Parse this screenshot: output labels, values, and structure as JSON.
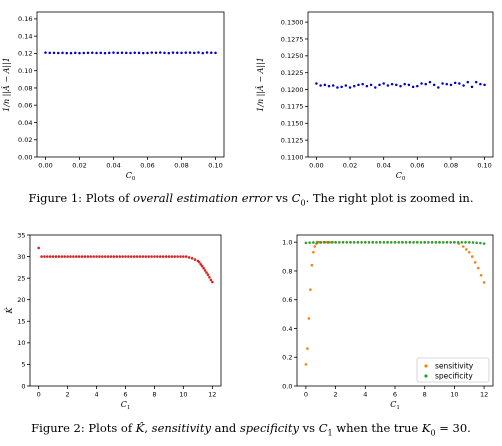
{
  "captions": {
    "fig1": {
      "prefix": "Figure 1: Plots of ",
      "emph": "overall estimation error",
      "mid": " vs ",
      "var": "C",
      "sub": "0",
      "suffix": ". The right plot is zoomed in."
    },
    "fig2": {
      "prefix": "Figure 2: Plots of ",
      "khat": "K̂",
      "comma": ", ",
      "emph1": "sensitivity",
      "and": " and ",
      "emph2": "specificity",
      "vs": " vs ",
      "var": "C",
      "sub": "1",
      "when": " when the true ",
      "kvar": "K",
      "ksub": "0",
      "eq": " = 30."
    }
  },
  "chart_data": [
    {
      "id": "err_full",
      "type": "scatter",
      "xlabel": "C0",
      "ylabel": "1/n ||Â − A||1",
      "xlim": [
        -0.005,
        0.105
      ],
      "ylim": [
        0.0,
        0.168
      ],
      "xticks": [
        "0.00",
        "0.02",
        "0.04",
        "0.06",
        "0.08",
        "0.10"
      ],
      "yticks": [
        "0.00",
        "0.02",
        "0.04",
        "0.06",
        "0.08",
        "0.10",
        "0.12",
        "0.14",
        "0.16"
      ],
      "series": [
        {
          "color": "#0000cc",
          "x": [
            0.0,
            0.0025,
            0.005,
            0.0075,
            0.01,
            0.0125,
            0.015,
            0.0175,
            0.02,
            0.0225,
            0.025,
            0.0275,
            0.03,
            0.0325,
            0.035,
            0.0375,
            0.04,
            0.0425,
            0.045,
            0.0475,
            0.05,
            0.0525,
            0.055,
            0.0575,
            0.06,
            0.0625,
            0.065,
            0.0675,
            0.07,
            0.0725,
            0.075,
            0.0775,
            0.08,
            0.0825,
            0.085,
            0.0875,
            0.09,
            0.0925,
            0.095,
            0.0975,
            0.1
          ],
          "y": [
            0.1209,
            0.1206,
            0.1207,
            0.1205,
            0.1206,
            0.1203,
            0.1204,
            0.1206,
            0.1203,
            0.1205,
            0.1207,
            0.1208,
            0.1205,
            0.1207,
            0.1203,
            0.1207,
            0.1209,
            0.1206,
            0.1208,
            0.1207,
            0.1205,
            0.1208,
            0.1207,
            0.1204,
            0.1205,
            0.1209,
            0.1208,
            0.1211,
            0.1207,
            0.1203,
            0.1209,
            0.1208,
            0.1207,
            0.121,
            0.1209,
            0.1206,
            0.1211,
            0.1204,
            0.1211,
            0.1208,
            0.1207
          ]
        }
      ]
    },
    {
      "id": "err_zoom",
      "type": "scatter",
      "xlabel": "C0",
      "ylabel": "1/n ||Â − A||1",
      "xlim": [
        -0.005,
        0.105
      ],
      "ylim": [
        0.11,
        0.1315
      ],
      "xticks": [
        "0.00",
        "0.02",
        "0.04",
        "0.06",
        "0.08",
        "0.10"
      ],
      "yticks": [
        "0.1100",
        "0.1125",
        "0.1150",
        "0.1175",
        "0.1200",
        "0.1225",
        "0.1250",
        "0.1275",
        "0.1300"
      ],
      "series": [
        {
          "color": "#0000cc",
          "x": [
            0.0,
            0.0025,
            0.005,
            0.0075,
            0.01,
            0.0125,
            0.015,
            0.0175,
            0.02,
            0.0225,
            0.025,
            0.0275,
            0.03,
            0.0325,
            0.035,
            0.0375,
            0.04,
            0.0425,
            0.045,
            0.0475,
            0.05,
            0.0525,
            0.055,
            0.0575,
            0.06,
            0.0625,
            0.065,
            0.0675,
            0.07,
            0.0725,
            0.075,
            0.0775,
            0.08,
            0.0825,
            0.085,
            0.0875,
            0.09,
            0.0925,
            0.095,
            0.0975,
            0.1
          ],
          "y": [
            0.1209,
            0.1206,
            0.1207,
            0.1205,
            0.1206,
            0.1203,
            0.1204,
            0.1206,
            0.1203,
            0.1205,
            0.1207,
            0.1208,
            0.1205,
            0.1207,
            0.1203,
            0.1207,
            0.1209,
            0.1206,
            0.1208,
            0.1207,
            0.1205,
            0.1208,
            0.1207,
            0.1204,
            0.1205,
            0.1209,
            0.1208,
            0.1211,
            0.1207,
            0.1203,
            0.1209,
            0.1208,
            0.1207,
            0.121,
            0.1209,
            0.1206,
            0.1211,
            0.1204,
            0.1211,
            0.1208,
            0.1207
          ]
        }
      ]
    },
    {
      "id": "khat",
      "type": "scatter",
      "xlabel": "C1",
      "ylabel": "K̂",
      "xlim": [
        -0.6,
        12.6
      ],
      "ylim": [
        0,
        35
      ],
      "xticks": [
        "0",
        "2",
        "4",
        "6",
        "8",
        "10",
        "12"
      ],
      "yticks": [
        "0",
        "5",
        "10",
        "15",
        "20",
        "25",
        "30",
        "35"
      ],
      "series": [
        {
          "color": "#d62728",
          "x": [
            0.0,
            0.2,
            0.4,
            0.6,
            0.8,
            1.0,
            1.2,
            1.4,
            1.6,
            1.8,
            2.0,
            2.2,
            2.4,
            2.6,
            2.8,
            3.0,
            3.2,
            3.4,
            3.6,
            3.8,
            4.0,
            4.2,
            4.4,
            4.6,
            4.8,
            5.0,
            5.2,
            5.4,
            5.6,
            5.8,
            6.0,
            6.2,
            6.4,
            6.6,
            6.8,
            7.0,
            7.2,
            7.4,
            7.6,
            7.8,
            8.0,
            8.2,
            8.4,
            8.6,
            8.8,
            9.0,
            9.2,
            9.4,
            9.6,
            9.8,
            10.0,
            10.2,
            10.4,
            10.6,
            10.8,
            11.0,
            11.1,
            11.2,
            11.3,
            11.4,
            11.5,
            11.6,
            11.7,
            11.8,
            11.9,
            12.0
          ],
          "y": [
            32,
            30,
            30,
            30,
            30,
            30,
            30,
            30,
            30,
            30,
            30,
            30,
            30,
            30,
            30,
            30,
            30,
            30,
            30,
            30,
            30,
            30,
            30,
            30,
            30,
            30,
            30,
            30,
            30,
            30,
            30,
            30,
            30,
            30,
            30,
            30,
            30,
            30,
            30,
            30,
            30,
            30,
            30,
            30,
            30,
            30,
            30,
            30,
            30,
            30,
            30,
            30,
            29.8,
            29.6,
            29.3,
            29,
            28.7,
            28.2,
            27.8,
            27.3,
            26.8,
            26.3,
            25.8,
            25.2,
            24.6,
            24.1
          ]
        }
      ]
    },
    {
      "id": "sens_spec",
      "type": "scatter",
      "xlabel": "C1",
      "ylabel": "",
      "xlim": [
        -0.6,
        12.6
      ],
      "ylim": [
        0,
        1.05
      ],
      "xticks": [
        "0",
        "2",
        "4",
        "6",
        "8",
        "10",
        "12"
      ],
      "yticks": [
        "0.0",
        "0.2",
        "0.4",
        "0.6",
        "0.8",
        "1.0"
      ],
      "legend": {
        "placement": "lower-right",
        "entries": [
          "sensitivity",
          "specificity"
        ]
      },
      "series": [
        {
          "name": "sensitivity",
          "color": "#ff7f0e",
          "x": [
            0.0,
            0.1,
            0.2,
            0.3,
            0.4,
            0.5,
            0.6,
            0.7,
            0.8,
            0.9,
            1.0,
            1.2,
            1.4,
            1.6,
            1.8,
            2.0,
            2.5,
            3.0,
            3.5,
            4.0,
            4.5,
            5.0,
            5.5,
            6.0,
            6.5,
            7.0,
            7.5,
            8.0,
            8.5,
            9.0,
            9.5,
            10.0,
            10.3,
            10.6,
            10.8,
            11.0,
            11.2,
            11.4,
            11.6,
            11.8,
            12.0
          ],
          "y": [
            0.15,
            0.26,
            0.47,
            0.67,
            0.84,
            0.93,
            0.97,
            0.99,
            1.0,
            1.0,
            1.0,
            1.0,
            1.0,
            1.0,
            1.0,
            1.0,
            1.0,
            1.0,
            1.0,
            1.0,
            1.0,
            1.0,
            1.0,
            1.0,
            1.0,
            1.0,
            1.0,
            1.0,
            1.0,
            1.0,
            1.0,
            1.0,
            0.99,
            0.97,
            0.95,
            0.93,
            0.9,
            0.86,
            0.82,
            0.77,
            0.72
          ]
        },
        {
          "name": "specificity",
          "color": "#2ca02c",
          "x": [
            0.0,
            0.25,
            0.5,
            0.75,
            1.0,
            1.25,
            1.5,
            1.75,
            2.0,
            2.25,
            2.5,
            2.75,
            3.0,
            3.25,
            3.5,
            3.75,
            4.0,
            4.25,
            4.5,
            4.75,
            5.0,
            5.25,
            5.5,
            5.75,
            6.0,
            6.25,
            6.5,
            6.75,
            7.0,
            7.25,
            7.5,
            7.75,
            8.0,
            8.25,
            8.5,
            8.75,
            9.0,
            9.25,
            9.5,
            9.75,
            10.0,
            10.25,
            10.5,
            10.75,
            11.0,
            11.25,
            11.5,
            11.75,
            12.0
          ],
          "y": [
            0.995,
            0.997,
            0.998,
            0.998,
            0.998,
            0.999,
            0.998,
            0.999,
            0.999,
            0.999,
            0.999,
            0.999,
            0.999,
            0.999,
            0.999,
            0.999,
            0.999,
            0.999,
            0.999,
            0.999,
            0.999,
            0.999,
            0.999,
            0.999,
            0.999,
            0.999,
            0.999,
            0.999,
            0.999,
            0.999,
            0.999,
            0.999,
            0.999,
            0.999,
            0.999,
            0.999,
            0.999,
            0.999,
            0.999,
            0.999,
            0.999,
            0.999,
            0.999,
            0.999,
            0.999,
            0.998,
            0.996,
            0.994,
            0.99
          ]
        }
      ]
    }
  ]
}
